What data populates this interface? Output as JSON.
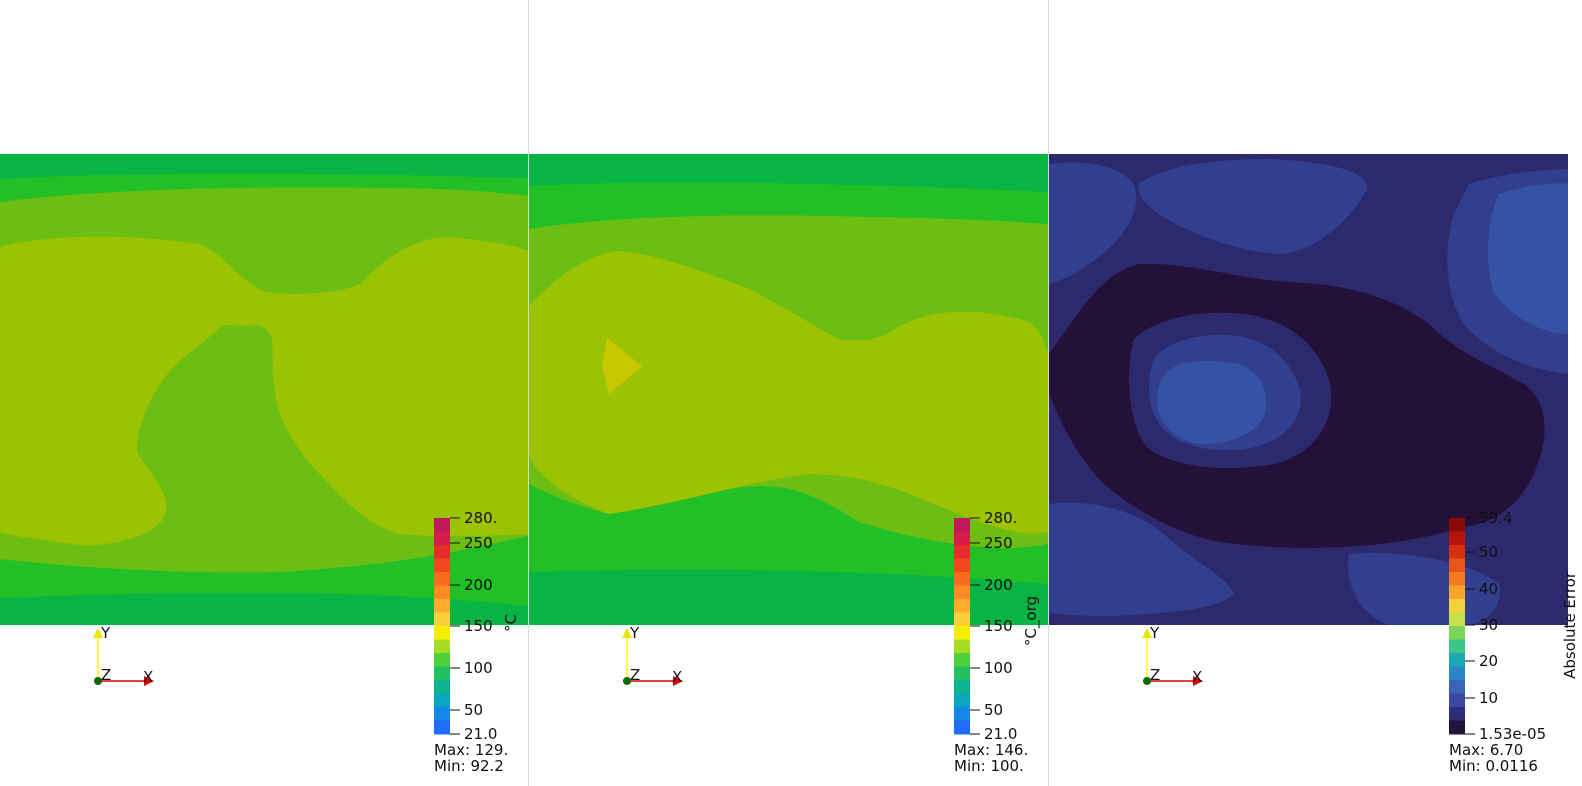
{
  "views": [
    {
      "colorbar": {
        "title": "°C",
        "labels": [
          "280.",
          "250",
          "200",
          "150",
          "100",
          "50",
          "21.0"
        ],
        "colors": [
          "#c2185b",
          "#d51c4a",
          "#e52b2b",
          "#f04a1c",
          "#f76b1c",
          "#fb8c24",
          "#fdac2e",
          "#fcd03a",
          "#f5f000",
          "#a6dd22",
          "#4fcf3a",
          "#22c063",
          "#0ab48f",
          "#0aa6bf",
          "#1488e6",
          "#1f6cff"
        ]
      },
      "stats": {
        "max": "Max: 129.",
        "min": "Min: 92.2"
      },
      "axes": {
        "y": "Y",
        "z": "Z",
        "x": "X"
      },
      "field_colors": [
        "#08b444",
        "#23bf26",
        "#6cbe12",
        "#9cc204",
        "#c9c800"
      ]
    },
    {
      "colorbar": {
        "title": "°C_org",
        "labels": [
          "280.",
          "250",
          "200",
          "150",
          "100",
          "50",
          "21.0"
        ],
        "colors": [
          "#c2185b",
          "#d51c4a",
          "#e52b2b",
          "#f04a1c",
          "#f76b1c",
          "#fb8c24",
          "#fdac2e",
          "#fcd03a",
          "#f5f000",
          "#a6dd22",
          "#4fcf3a",
          "#22c063",
          "#0ab48f",
          "#0aa6bf",
          "#1488e6",
          "#1f6cff"
        ]
      },
      "stats": {
        "max": "Max: 146.",
        "min": "Min: 100."
      },
      "axes": {
        "y": "Y",
        "z": "Z",
        "x": "X"
      },
      "field_colors": [
        "#08b444",
        "#23bf26",
        "#6cbe12",
        "#9cc204",
        "#c9c800"
      ]
    },
    {
      "colorbar": {
        "title": "Absolute Error",
        "labels": [
          "59.4",
          "50",
          "40",
          "30",
          "20",
          "10",
          "1.53e-05"
        ],
        "colors": [
          "#8b0a0a",
          "#b4140a",
          "#d6300a",
          "#e8551a",
          "#f27a1f",
          "#f7a52a",
          "#f5d23a",
          "#c8e04a",
          "#7cd45a",
          "#3fc488",
          "#1aa8b4",
          "#2a86c8",
          "#3a64b8",
          "#3a48a2",
          "#2e2e78",
          "#24143c"
        ]
      },
      "stats": {
        "max": "Max: 6.70",
        "min": "Min: 0.0116"
      },
      "axes": {
        "y": "Y",
        "z": "Z",
        "x": "X"
      },
      "field_colors": [
        "#24113a",
        "#2c2a6c",
        "#313f8e",
        "#3552a4"
      ]
    }
  ]
}
